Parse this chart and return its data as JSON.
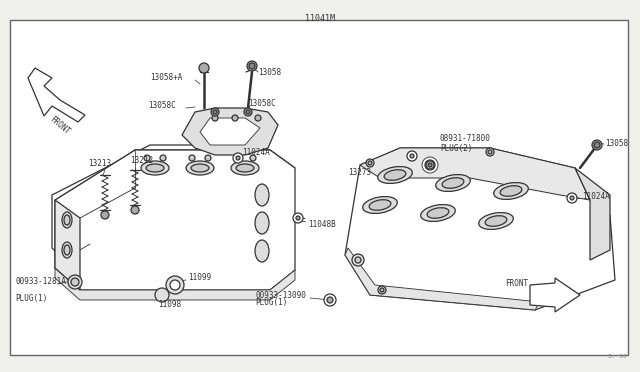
{
  "bg_color": "#f0f0ec",
  "box_bg": "#ffffff",
  "line_color": "#333333",
  "text_color": "#333333",
  "title": "11041M",
  "watermark": "S: 00",
  "lw": 0.9,
  "fs": 6.0,
  "ft": 5.5,
  "labels": {
    "title": "11041M",
    "p13058_a": "13058+A",
    "p13058": "13058",
    "p13058c": "13058C",
    "p11024a": "11024A",
    "p11048b": "11048B",
    "p13212": "13212",
    "p13213": "13213",
    "p11099": "11099",
    "p11098": "11098",
    "p00933_1281a": "00933-1281A",
    "plug1": "PLUG(1)",
    "p00933_13090": "00933-13090",
    "p08931_71800": "08931-71800",
    "plug2": "PLUG(2)",
    "p13273": "13273",
    "front": "FRONT",
    "watermark": "S: 00"
  }
}
